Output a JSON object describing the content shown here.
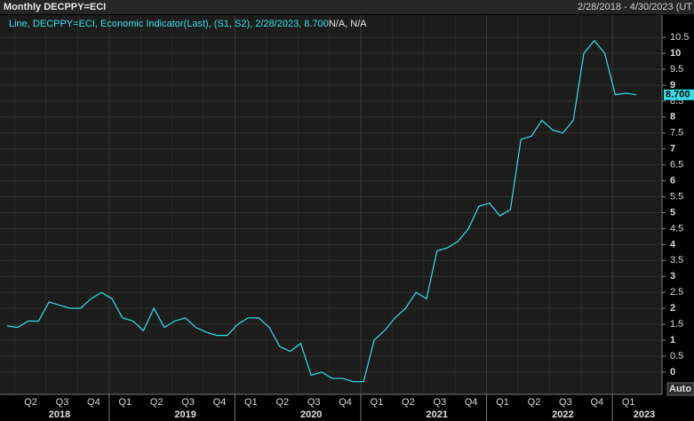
{
  "header": {
    "left": "Monthly DECPPY=ECI",
    "right": "2/28/2018 - 4/30/2023 (UT"
  },
  "legend": {
    "series_text": "Line, DECPPY=ECI, Economic Indicator(Last), (S1, S2), 2/28/2023, 8.700",
    "extra_text": "N/A, N/A"
  },
  "auto_button": "Auto",
  "chart_data": {
    "type": "line",
    "categories": [
      null,
      null,
      "Q2",
      null,
      null,
      "Q3",
      null,
      null,
      "Q4",
      null,
      null,
      "Q1",
      null,
      null,
      "Q2",
      null,
      null,
      "Q3",
      null,
      null,
      "Q4",
      null,
      null,
      "Q1",
      null,
      null,
      "Q2",
      null,
      null,
      "Q3",
      null,
      null,
      "Q4",
      null,
      null,
      "Q1",
      null,
      null,
      "Q2",
      null,
      null,
      "Q3",
      null,
      null,
      "Q4",
      null,
      null,
      "Q1",
      null,
      null,
      "Q2",
      null,
      null,
      "Q3",
      null,
      null,
      "Q4",
      null,
      null,
      "Q1",
      null
    ],
    "years": [
      "2018",
      "2019",
      "2020",
      "2021",
      "2022",
      "2023"
    ],
    "series": [
      {
        "name": "DECPPY=ECI",
        "color": "#33e0e8",
        "values": [
          1.45,
          1.4,
          1.6,
          1.6,
          2.2,
          2.1,
          2.0,
          2.0,
          2.3,
          2.5,
          2.3,
          1.7,
          1.6,
          1.3,
          2.0,
          1.4,
          1.6,
          1.7,
          1.4,
          1.25,
          1.15,
          1.15,
          1.5,
          1.7,
          1.7,
          1.4,
          0.8,
          0.65,
          0.9,
          -0.1,
          0.0,
          -0.2,
          -0.2,
          -0.3,
          -0.3,
          1.0,
          1.3,
          1.7,
          2.0,
          2.5,
          2.3,
          3.8,
          3.9,
          4.1,
          4.5,
          5.2,
          5.3,
          4.9,
          5.1,
          7.3,
          7.4,
          7.9,
          7.6,
          7.5,
          7.9,
          10.0,
          10.4,
          10.0,
          8.7,
          8.75,
          8.7
        ]
      }
    ],
    "last_value": 8.7,
    "last_value_label": "8.700",
    "ylim": [
      -0.7,
      11.2
    ],
    "yticks": [
      0,
      0.5,
      1,
      1.5,
      2,
      2.5,
      3,
      3.5,
      4,
      4.5,
      5,
      5.5,
      6,
      6.5,
      7,
      7.5,
      8,
      8.5,
      9,
      9.5,
      10,
      10.5
    ],
    "grid": true
  }
}
